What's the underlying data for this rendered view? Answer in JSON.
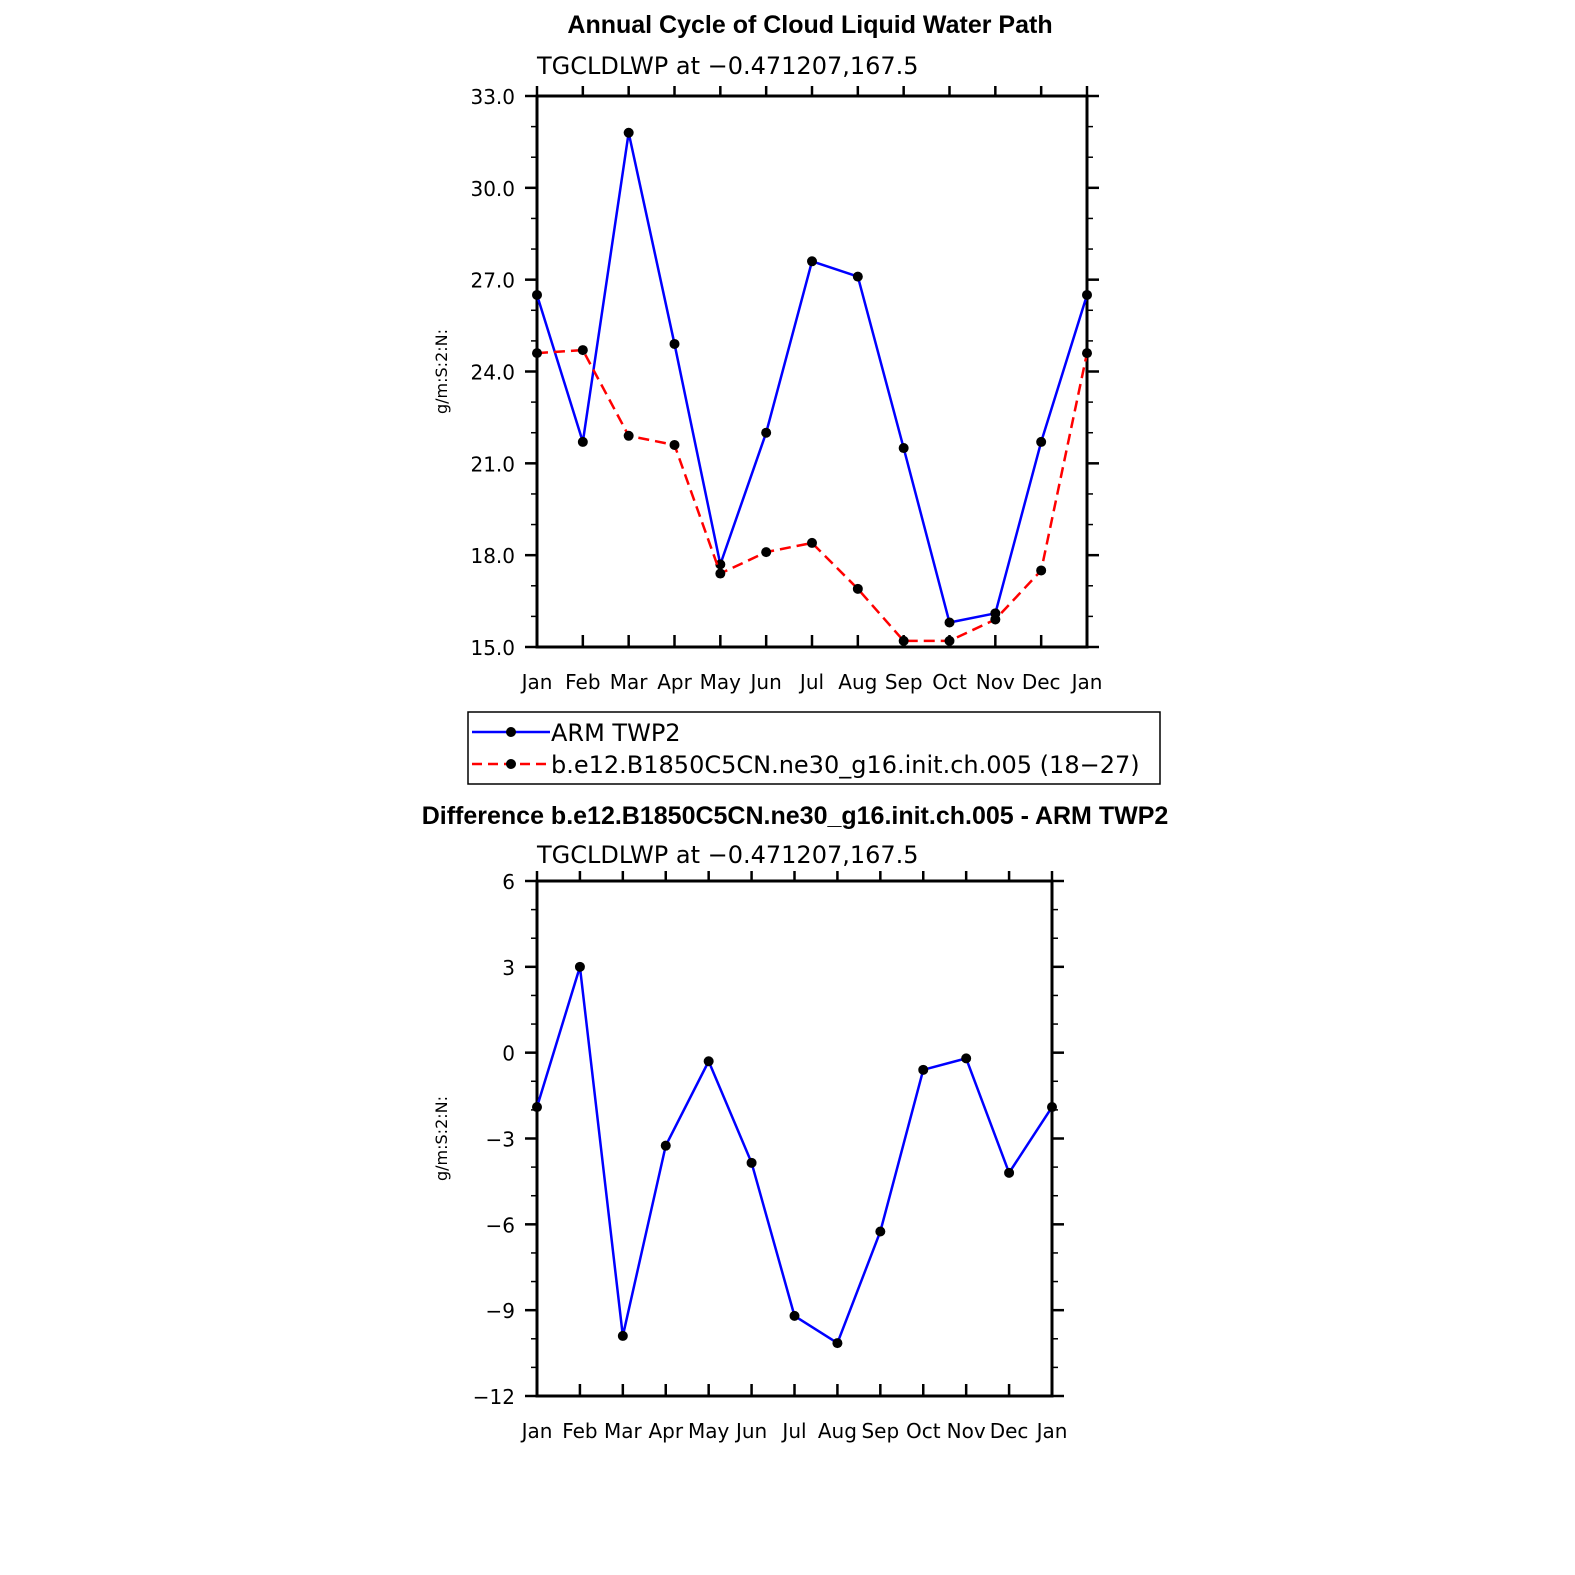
{
  "chart_data": [
    {
      "type": "line",
      "title": "Annual Cycle of Cloud Liquid Water Path",
      "subtitle": "TGCLDLWP  at  −0.471207,167.5",
      "ylabel": "g/m:S:2:N:",
      "categories": [
        "Jan",
        "Feb",
        "Mar",
        "Apr",
        "May",
        "Jun",
        "Jul",
        "Aug",
        "Sep",
        "Oct",
        "Nov",
        "Dec",
        "Jan"
      ],
      "ylim": [
        15.0,
        33.0
      ],
      "yticks": [
        "15.0",
        "18.0",
        "21.0",
        "24.0",
        "27.0",
        "30.0",
        "33.0"
      ],
      "grid": false,
      "legend_position": "bottom",
      "series": [
        {
          "name": "ARM TWP2",
          "color": "#0000ff",
          "style": "solid",
          "values": [
            26.5,
            21.7,
            31.8,
            24.9,
            17.7,
            22.0,
            27.6,
            27.1,
            21.5,
            15.8,
            16.1,
            21.7,
            26.5
          ]
        },
        {
          "name": "b.e12.B1850C5CN.ne30_g16.init.ch.005 (18−27)",
          "color": "#ff0000",
          "style": "dashed",
          "values": [
            24.6,
            24.7,
            21.9,
            21.6,
            17.4,
            18.1,
            18.4,
            16.9,
            15.2,
            15.2,
            15.9,
            17.5,
            24.6
          ]
        }
      ]
    },
    {
      "type": "line",
      "title": "Difference b.e12.B1850C5CN.ne30_g16.init.ch.005 - ARM TWP2",
      "subtitle": "TGCLDLWP  at  −0.471207,167.5",
      "ylabel": "g/m:S:2:N:",
      "categories": [
        "Jan",
        "Feb",
        "Mar",
        "Apr",
        "May",
        "Jun",
        "Jul",
        "Aug",
        "Sep",
        "Oct",
        "Nov",
        "Dec",
        "Jan"
      ],
      "ylim": [
        -12,
        6
      ],
      "yticks": [
        "−12",
        "−9",
        "−6",
        "−3",
        "0",
        "3",
        "6"
      ],
      "grid": false,
      "series": [
        {
          "color": "#0000ff",
          "style": "solid",
          "values": [
            -1.9,
            3.0,
            -9.9,
            -3.25,
            -0.3,
            -3.85,
            -9.2,
            -10.15,
            -6.25,
            -0.6,
            -0.2,
            -4.2,
            -1.9
          ]
        }
      ]
    }
  ]
}
